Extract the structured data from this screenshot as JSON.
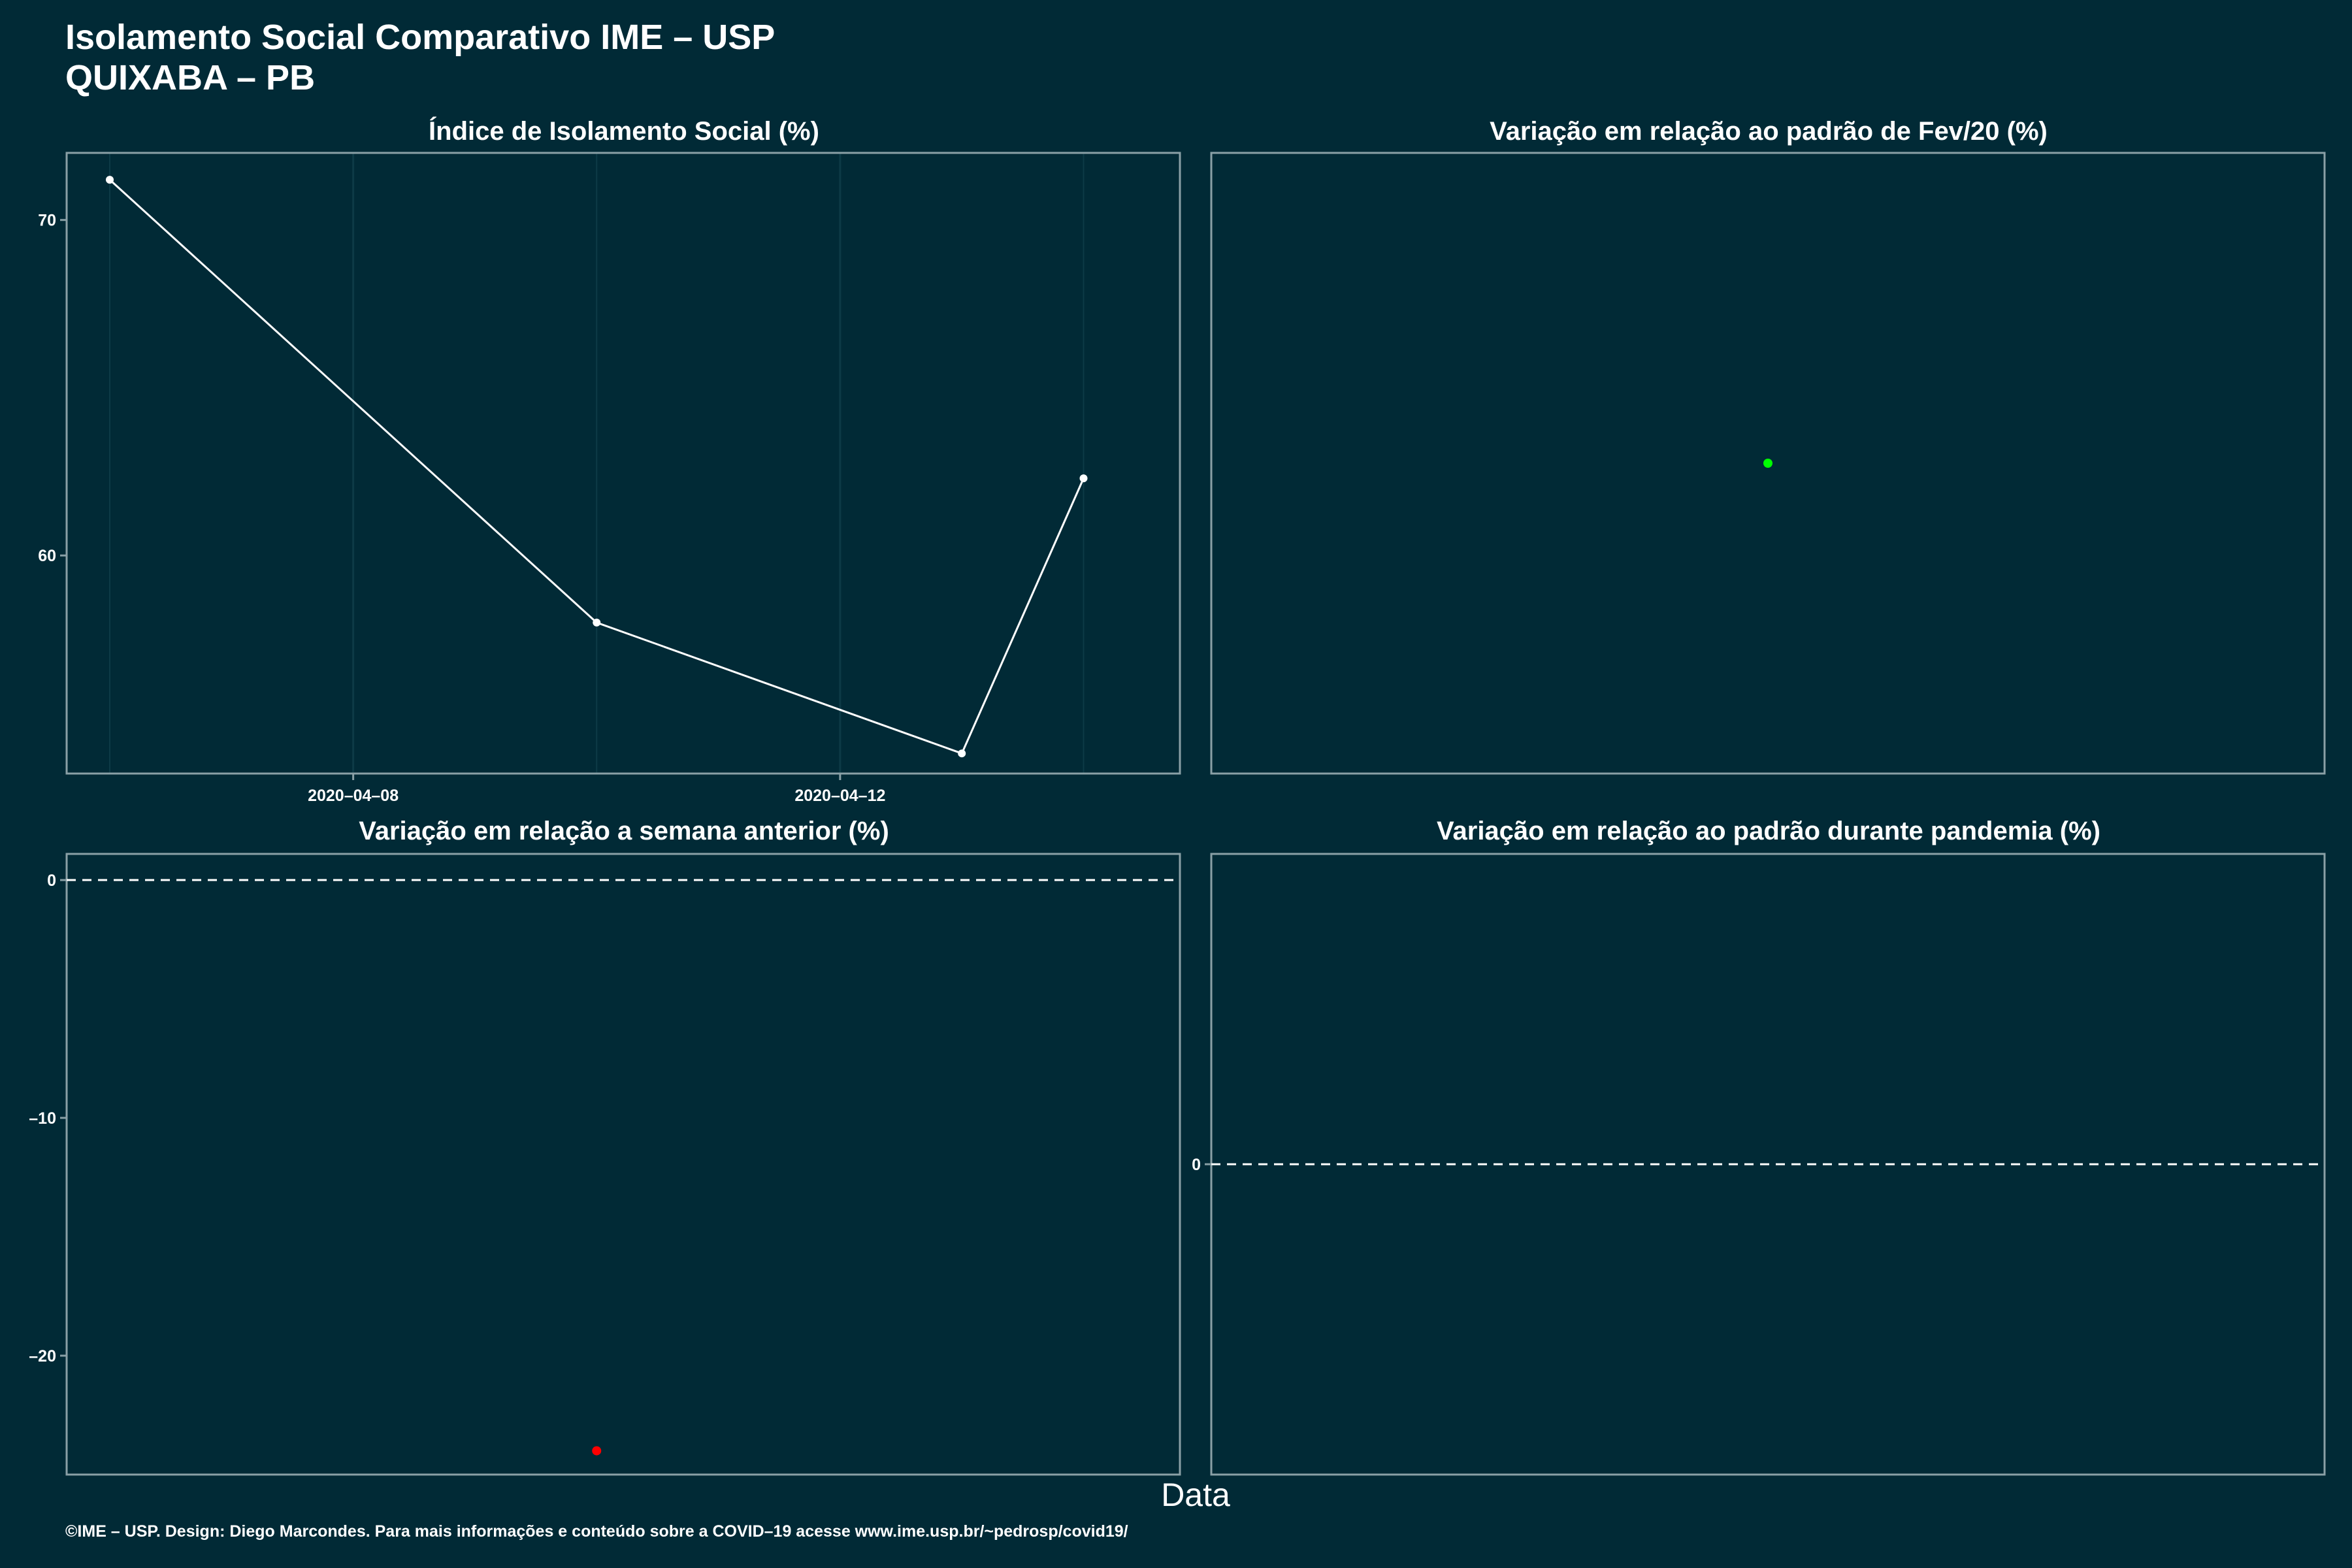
{
  "page": {
    "title_line1": "Isolamento Social Comparativo IME – USP",
    "title_line2": "QUIXABA – PB",
    "x_axis_title": "Data",
    "caption": "©IME – USP. Design: Diego Marcondes. Para mais informações e conteúdo sobre a COVID–19 acesse www.ime.usp.br/~pedrosp/covid19/"
  },
  "colors": {
    "background": "#012a36",
    "line": "#ffffff",
    "positive_point": "#00ff00",
    "negative_point": "#ff0000",
    "frame": "#8aa0a6",
    "grid": "#0d3a46"
  },
  "chart_data": [
    {
      "id": "isolation-index",
      "type": "line",
      "title": "Índice de Isolamento Social (%)",
      "x": [
        "2020-04-06",
        "2020-04-10",
        "2020-04-13",
        "2020-04-14"
      ],
      "values": [
        71.2,
        58.0,
        54.1,
        62.3
      ],
      "xlim": [
        "2020-04-05 15:30",
        "2020-04-14 19:00"
      ],
      "ylim": [
        53.5,
        72.0
      ],
      "x_ticks": [
        "2020-04-08",
        "2020-04-12"
      ],
      "y_ticks": [
        60,
        70
      ],
      "x_tick_labels": [
        "2020–04–08",
        "2020–04–12"
      ],
      "y_tick_labels": [
        "60",
        "70"
      ],
      "grid": true
    },
    {
      "id": "variation-feb",
      "type": "scatter",
      "title": "Variação em relação ao padrão de Fev/20 (%)",
      "x": [
        "2020-04-14"
      ],
      "values": [
        0
      ],
      "y_ticks": [],
      "grid": false
    },
    {
      "id": "variation-week",
      "type": "scatter",
      "title": "Variação em relação a semana anterior (%)",
      "x": [
        "2020-04-10"
      ],
      "values": [
        -24
      ],
      "xlim": [
        "2020-04-05 15:30",
        "2020-04-14 19:00"
      ],
      "ylim": [
        -25,
        1.1
      ],
      "y_ticks": [
        0,
        -10,
        -20
      ],
      "y_tick_labels": [
        "0",
        "–10",
        "–20"
      ],
      "reference_line": 0,
      "grid": false
    },
    {
      "id": "variation-pandemic",
      "type": "scatter",
      "title": "Variação em relação ao padrão durante pandemia (%)",
      "x": [],
      "values": [],
      "ylim": [
        -1,
        1
      ],
      "y_ticks": [
        0
      ],
      "y_tick_labels": [
        "0"
      ],
      "reference_line": 0,
      "grid": false
    }
  ]
}
